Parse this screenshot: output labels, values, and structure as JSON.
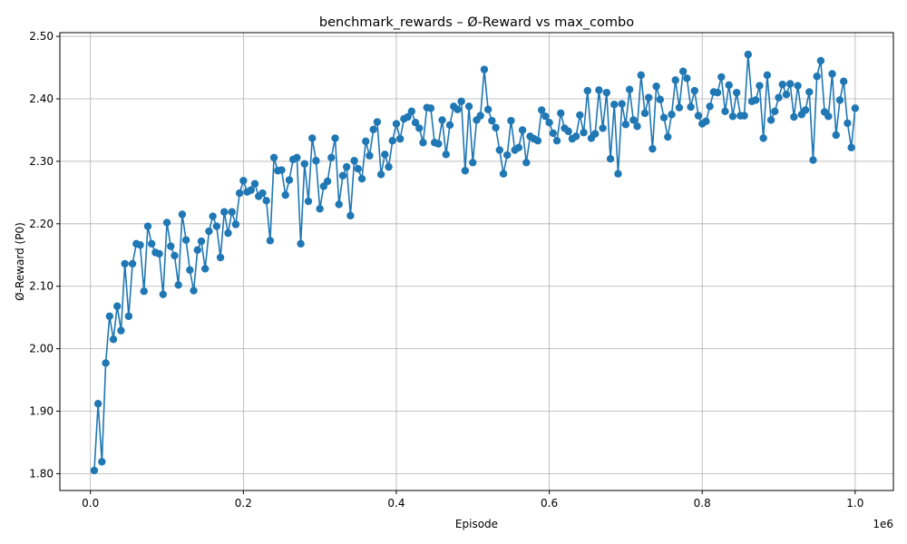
{
  "chart_data": {
    "type": "line",
    "title": "benchmark_rewards – Ø-Reward vs max_combo",
    "xlabel": "Episode",
    "ylabel": "Ø-Reward (P0)",
    "x_offset_label": "1e6",
    "xlim": [
      -40000,
      1050000
    ],
    "ylim": [
      1.773,
      2.506
    ],
    "x_ticks": [
      0,
      200000,
      400000,
      600000,
      800000,
      1000000
    ],
    "x_tick_labels": [
      "0.0",
      "0.2",
      "0.4",
      "0.6",
      "0.8",
      "1.0"
    ],
    "y_ticks": [
      1.8,
      1.9,
      2.0,
      2.1,
      2.2,
      2.3,
      2.4,
      2.5
    ],
    "y_tick_labels": [
      "1.80",
      "1.90",
      "2.00",
      "2.10",
      "2.20",
      "2.30",
      "2.40",
      "2.50"
    ],
    "grid": true,
    "color": "#1f77b4",
    "marker": "circle",
    "series": [
      {
        "x_start": 5000,
        "x_step": 5000,
        "values": [
          1.805,
          1.912,
          1.819,
          1.977,
          2.052,
          2.015,
          2.068,
          2.029,
          2.136,
          2.052,
          2.136,
          2.168,
          2.166,
          2.092,
          2.196,
          2.168,
          2.154,
          2.152,
          2.087,
          2.202,
          2.164,
          2.149,
          2.102,
          2.215,
          2.174,
          2.126,
          2.093,
          2.158,
          2.172,
          2.128,
          2.188,
          2.212,
          2.196,
          2.146,
          2.219,
          2.185,
          2.219,
          2.199,
          2.249,
          2.269,
          2.251,
          2.254,
          2.264,
          2.244,
          2.249,
          2.237,
          2.173,
          2.306,
          2.285,
          2.286,
          2.246,
          2.27,
          2.303,
          2.306,
          2.168,
          2.296,
          2.236,
          2.337,
          2.301,
          2.224,
          2.26,
          2.268,
          2.306,
          2.337,
          2.231,
          2.277,
          2.291,
          2.213,
          2.301,
          2.288,
          2.272,
          2.332,
          2.309,
          2.351,
          2.363,
          2.279,
          2.311,
          2.291,
          2.333,
          2.36,
          2.336,
          2.368,
          2.371,
          2.38,
          2.362,
          2.353,
          2.33,
          2.386,
          2.385,
          2.33,
          2.328,
          2.366,
          2.311,
          2.358,
          2.388,
          2.383,
          2.396,
          2.285,
          2.388,
          2.298,
          2.366,
          2.373,
          2.447,
          2.383,
          2.365,
          2.354,
          2.318,
          2.28,
          2.31,
          2.365,
          2.318,
          2.322,
          2.35,
          2.298,
          2.34,
          2.336,
          2.333,
          2.382,
          2.372,
          2.362,
          2.345,
          2.333,
          2.377,
          2.353,
          2.348,
          2.336,
          2.34,
          2.374,
          2.346,
          2.413,
          2.337,
          2.344,
          2.414,
          2.353,
          2.41,
          2.304,
          2.391,
          2.28,
          2.392,
          2.359,
          2.415,
          2.366,
          2.356,
          2.438,
          2.377,
          2.402,
          2.32,
          2.42,
          2.399,
          2.37,
          2.339,
          2.375,
          2.43,
          2.386,
          2.444,
          2.433,
          2.387,
          2.413,
          2.373,
          2.36,
          2.364,
          2.388,
          2.411,
          2.41,
          2.435,
          2.38,
          2.422,
          2.372,
          2.41,
          2.373,
          2.373,
          2.471,
          2.396,
          2.398,
          2.421,
          2.337,
          2.438,
          2.366,
          2.38,
          2.402,
          2.423,
          2.407,
          2.424,
          2.371,
          2.421,
          2.375,
          2.382,
          2.411,
          2.302,
          2.436,
          2.461,
          2.379,
          2.372,
          2.44,
          2.342,
          2.398,
          2.428,
          2.361,
          2.322,
          2.385
        ]
      }
    ]
  }
}
